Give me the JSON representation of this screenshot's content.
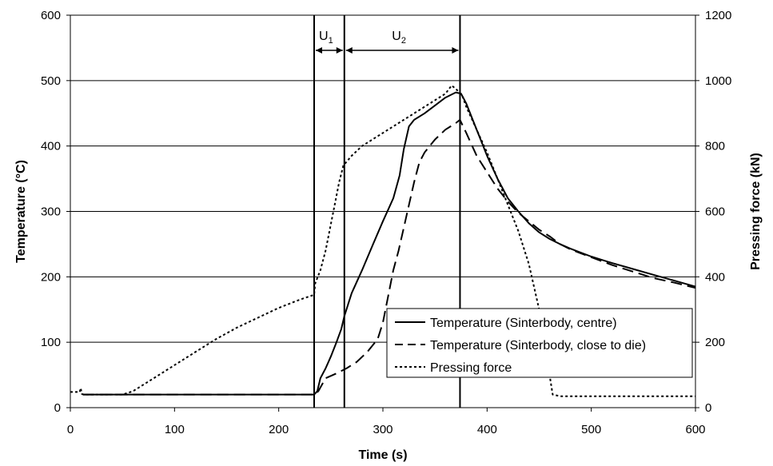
{
  "chart_data": {
    "type": "line",
    "title": "",
    "xlabel": "Time (s)",
    "ylabel": "Temperature (°C)",
    "y2label": "Pressing force (kN)",
    "xlim": [
      0,
      600
    ],
    "ylim": [
      0,
      600
    ],
    "y2lim": [
      0,
      1200
    ],
    "x_ticks": [
      0,
      100,
      200,
      300,
      400,
      500,
      600
    ],
    "y_ticks": [
      0,
      100,
      200,
      300,
      400,
      500,
      600
    ],
    "y2_ticks": [
      0,
      200,
      400,
      600,
      800,
      1000,
      1200
    ],
    "grid": "horizontal",
    "legend": "lower-right",
    "annotations": [
      {
        "label": "U",
        "sub": "1",
        "x_start": 234,
        "x_end": 263
      },
      {
        "label": "U",
        "sub": "2",
        "x_start": 263,
        "x_end": 374
      }
    ],
    "vlines": [
      234,
      263,
      374
    ],
    "series": [
      {
        "name": "Temperature (Sinterbody, centre)",
        "axis": "left",
        "style": "solid",
        "points": [
          [
            12,
            20
          ],
          [
            50,
            20
          ],
          [
            100,
            20
          ],
          [
            150,
            20
          ],
          [
            200,
            20
          ],
          [
            234,
            20
          ],
          [
            237,
            25
          ],
          [
            240,
            45
          ],
          [
            245,
            60
          ],
          [
            250,
            78
          ],
          [
            255,
            98
          ],
          [
            260,
            120
          ],
          [
            263,
            140
          ],
          [
            270,
            175
          ],
          [
            280,
            210
          ],
          [
            290,
            248
          ],
          [
            300,
            285
          ],
          [
            310,
            320
          ],
          [
            316,
            355
          ],
          [
            320,
            395
          ],
          [
            325,
            430
          ],
          [
            330,
            440
          ],
          [
            340,
            450
          ],
          [
            350,
            462
          ],
          [
            360,
            474
          ],
          [
            370,
            482
          ],
          [
            375,
            480
          ],
          [
            380,
            465
          ],
          [
            390,
            425
          ],
          [
            400,
            385
          ],
          [
            410,
            350
          ],
          [
            420,
            320
          ],
          [
            430,
            300
          ],
          [
            440,
            282
          ],
          [
            450,
            268
          ],
          [
            460,
            258
          ],
          [
            470,
            250
          ],
          [
            480,
            243
          ],
          [
            490,
            237
          ],
          [
            500,
            231
          ],
          [
            520,
            221
          ],
          [
            540,
            212
          ],
          [
            560,
            203
          ],
          [
            580,
            194
          ],
          [
            600,
            185
          ]
        ]
      },
      {
        "name": "Temperature (Sinterbody, close to die)",
        "axis": "left",
        "style": "dashed",
        "points": [
          [
            12,
            20
          ],
          [
            50,
            20
          ],
          [
            100,
            20
          ],
          [
            150,
            20
          ],
          [
            200,
            20
          ],
          [
            234,
            20
          ],
          [
            238,
            25
          ],
          [
            245,
            45
          ],
          [
            255,
            52
          ],
          [
            265,
            60
          ],
          [
            275,
            70
          ],
          [
            285,
            85
          ],
          [
            295,
            105
          ],
          [
            300,
            130
          ],
          [
            305,
            170
          ],
          [
            310,
            210
          ],
          [
            315,
            240
          ],
          [
            320,
            275
          ],
          [
            325,
            310
          ],
          [
            330,
            345
          ],
          [
            335,
            375
          ],
          [
            340,
            390
          ],
          [
            350,
            410
          ],
          [
            360,
            425
          ],
          [
            370,
            435
          ],
          [
            374,
            440
          ],
          [
            380,
            420
          ],
          [
            390,
            385
          ],
          [
            400,
            360
          ],
          [
            410,
            335
          ],
          [
            420,
            315
          ],
          [
            430,
            298
          ],
          [
            440,
            285
          ],
          [
            450,
            272
          ],
          [
            460,
            262
          ],
          [
            470,
            250
          ],
          [
            480,
            242
          ],
          [
            490,
            236
          ],
          [
            500,
            230
          ],
          [
            520,
            218
          ],
          [
            540,
            208
          ],
          [
            560,
            198
          ],
          [
            580,
            191
          ],
          [
            600,
            183
          ]
        ]
      },
      {
        "name": "Pressing force",
        "axis": "right",
        "style": "dotted",
        "points": [
          [
            0,
            48
          ],
          [
            9,
            48
          ],
          [
            10,
            60
          ],
          [
            11,
            42
          ],
          [
            13,
            40
          ],
          [
            50,
            40
          ],
          [
            60,
            50
          ],
          [
            80,
            90
          ],
          [
            100,
            130
          ],
          [
            120,
            170
          ],
          [
            140,
            210
          ],
          [
            160,
            245
          ],
          [
            180,
            275
          ],
          [
            200,
            305
          ],
          [
            220,
            330
          ],
          [
            234,
            345
          ],
          [
            235,
            380
          ],
          [
            240,
            420
          ],
          [
            245,
            480
          ],
          [
            250,
            560
          ],
          [
            255,
            640
          ],
          [
            258,
            690
          ],
          [
            262,
            740
          ],
          [
            270,
            770
          ],
          [
            280,
            800
          ],
          [
            300,
            840
          ],
          [
            320,
            880
          ],
          [
            340,
            920
          ],
          [
            360,
            960
          ],
          [
            366,
            985
          ],
          [
            370,
            975
          ],
          [
            376,
            955
          ],
          [
            380,
            920
          ],
          [
            390,
            850
          ],
          [
            400,
            780
          ],
          [
            410,
            700
          ],
          [
            420,
            620
          ],
          [
            430,
            540
          ],
          [
            440,
            440
          ],
          [
            450,
            300
          ],
          [
            460,
            100
          ],
          [
            463,
            40
          ],
          [
            470,
            35
          ],
          [
            500,
            35
          ],
          [
            550,
            35
          ],
          [
            600,
            35
          ]
        ]
      }
    ]
  }
}
